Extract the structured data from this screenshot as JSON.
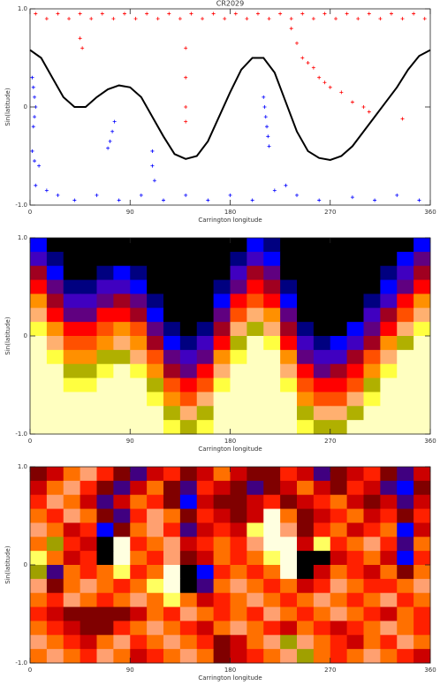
{
  "chart_data": [
    {
      "type": "scatter",
      "title": "CR2029",
      "xlabel": "Carrington longitude",
      "ylabel": "Sin(latitude)",
      "xlim": [
        0,
        360
      ],
      "ylim": [
        -1,
        1
      ],
      "xticks": [
        0,
        90,
        180,
        270,
        360
      ],
      "yticks": [
        {
          "value": -1,
          "label": "-1.0"
        },
        0,
        {
          "value": 1,
          "label": "1.0"
        }
      ],
      "series": [
        {
          "color": "#ff0000",
          "marker": "+",
          "x": [
            5,
            15,
            25,
            35,
            45,
            55,
            65,
            75,
            85,
            95,
            105,
            115,
            125,
            135,
            145,
            155,
            165,
            175,
            185,
            195,
            205,
            215,
            225,
            235,
            245,
            255,
            265,
            275,
            285,
            295,
            305,
            315,
            325,
            335,
            345,
            355,
            45,
            47,
            140,
            140,
            140,
            140,
            235,
            240,
            245,
            250,
            255,
            260,
            265,
            270,
            280,
            290,
            300,
            305,
            335
          ],
          "values": [
            0.95,
            0.9,
            0.95,
            0.9,
            0.95,
            0.9,
            0.95,
            0.9,
            0.95,
            0.9,
            0.95,
            0.9,
            0.95,
            0.9,
            0.95,
            0.9,
            0.95,
            0.9,
            0.95,
            0.9,
            0.95,
            0.9,
            0.95,
            0.9,
            0.95,
            0.9,
            0.95,
            0.9,
            0.95,
            0.9,
            0.95,
            0.9,
            0.95,
            0.9,
            0.95,
            0.9,
            0.7,
            0.6,
            0.6,
            0.3,
            0.0,
            -0.15,
            0.8,
            0.65,
            0.5,
            0.45,
            0.4,
            0.3,
            0.25,
            0.2,
            0.15,
            0.05,
            0.0,
            -0.05,
            -0.12
          ]
        },
        {
          "color": "#0000ff",
          "marker": "+",
          "x": [
            2,
            3,
            4,
            5,
            4,
            3,
            2,
            4,
            8,
            76,
            74,
            72,
            70,
            110,
            110,
            112,
            210,
            211,
            212,
            213,
            214,
            215,
            5,
            15,
            25,
            40,
            60,
            80,
            100,
            120,
            140,
            160,
            180,
            200,
            220,
            230,
            240,
            260,
            290,
            310,
            330,
            350
          ],
          "values": [
            0.3,
            0.2,
            0.1,
            0.0,
            -0.1,
            -0.2,
            -0.45,
            -0.55,
            -0.6,
            -0.15,
            -0.25,
            -0.35,
            -0.42,
            -0.45,
            -0.6,
            -0.75,
            0.1,
            0.0,
            -0.1,
            -0.2,
            -0.3,
            -0.4,
            -0.8,
            -0.85,
            -0.9,
            -0.95,
            -0.9,
            -0.95,
            -0.9,
            -0.95,
            -0.9,
            -0.95,
            -0.9,
            -0.95,
            -0.85,
            -0.8,
            -0.9,
            -0.95,
            -0.92,
            -0.95,
            -0.9,
            -0.95
          ]
        },
        {
          "color": "#000000",
          "style": "line",
          "x": [
            0,
            10,
            20,
            30,
            40,
            50,
            60,
            70,
            80,
            90,
            100,
            110,
            120,
            130,
            140,
            150,
            160,
            170,
            180,
            190,
            200,
            210,
            220,
            230,
            240,
            250,
            260,
            270,
            280,
            290,
            300,
            310,
            320,
            330,
            340,
            350,
            360
          ],
          "values": [
            0.58,
            0.5,
            0.3,
            0.1,
            0.0,
            0.0,
            0.1,
            0.18,
            0.22,
            0.2,
            0.1,
            -0.1,
            -0.3,
            -0.48,
            -0.53,
            -0.5,
            -0.35,
            -0.1,
            0.15,
            0.38,
            0.5,
            0.5,
            0.35,
            0.05,
            -0.25,
            -0.45,
            -0.52,
            -0.54,
            -0.5,
            -0.4,
            -0.25,
            -0.1,
            0.05,
            0.2,
            0.38,
            0.52,
            0.58
          ]
        }
      ]
    },
    {
      "type": "heatmap",
      "xlabel": "Carrington longitude",
      "ylabel": "Sin(latitude)",
      "xlim": [
        0,
        360
      ],
      "ylim": [
        -1,
        1
      ],
      "xticks": [
        0,
        90,
        180,
        270,
        360
      ],
      "yticks": [
        {
          "value": -1,
          "label": "-1.0"
        },
        0,
        {
          "value": 1,
          "label": "1.0"
        }
      ],
      "origin": "upper",
      "colors": [
        "#000000",
        "#000080",
        "#0000ff",
        "#4000c0",
        "#600080",
        "#a00020",
        "#ff0000",
        "#ff5000",
        "#ff9000",
        "#ffb070",
        "#b0b000",
        "#ffff40",
        "#ffffc0"
      ],
      "values": [
        [
          2,
          0,
          0,
          0,
          0,
          0,
          0,
          0,
          0,
          0,
          0,
          0,
          0,
          2,
          1,
          0,
          0,
          0,
          0,
          0,
          0,
          0,
          0,
          2
        ],
        [
          3,
          1,
          0,
          0,
          0,
          0,
          0,
          0,
          0,
          0,
          0,
          0,
          1,
          3,
          2,
          0,
          0,
          0,
          0,
          0,
          0,
          0,
          2,
          4
        ],
        [
          5,
          2,
          0,
          0,
          1,
          2,
          1,
          0,
          0,
          0,
          0,
          0,
          3,
          5,
          4,
          0,
          0,
          0,
          0,
          0,
          0,
          1,
          3,
          5
        ],
        [
          6,
          4,
          1,
          1,
          3,
          3,
          2,
          0,
          0,
          0,
          0,
          1,
          4,
          6,
          5,
          1,
          0,
          0,
          0,
          0,
          0,
          2,
          4,
          6
        ],
        [
          8,
          5,
          3,
          3,
          4,
          5,
          4,
          1,
          0,
          0,
          0,
          2,
          6,
          7,
          6,
          2,
          0,
          0,
          0,
          0,
          1,
          3,
          6,
          8
        ],
        [
          9,
          6,
          4,
          4,
          6,
          6,
          5,
          2,
          0,
          0,
          0,
          4,
          7,
          9,
          8,
          4,
          0,
          0,
          0,
          0,
          3,
          5,
          7,
          9
        ],
        [
          11,
          8,
          6,
          6,
          7,
          8,
          7,
          4,
          1,
          0,
          1,
          5,
          9,
          10,
          9,
          5,
          1,
          0,
          0,
          2,
          4,
          6,
          9,
          11
        ],
        [
          12,
          9,
          7,
          7,
          8,
          9,
          8,
          5,
          2,
          1,
          3,
          6,
          10,
          12,
          11,
          6,
          3,
          1,
          2,
          3,
          5,
          8,
          10,
          12
        ],
        [
          12,
          11,
          8,
          8,
          10,
          10,
          9,
          7,
          4,
          3,
          4,
          8,
          11,
          12,
          12,
          8,
          4,
          3,
          3,
          5,
          7,
          9,
          12,
          12
        ],
        [
          12,
          12,
          10,
          10,
          11,
          12,
          11,
          8,
          5,
          4,
          6,
          9,
          12,
          12,
          12,
          9,
          6,
          4,
          5,
          6,
          8,
          11,
          12,
          12
        ],
        [
          12,
          12,
          11,
          11,
          12,
          12,
          12,
          10,
          7,
          6,
          7,
          11,
          12,
          12,
          12,
          11,
          7,
          6,
          6,
          7,
          10,
          12,
          12,
          12
        ],
        [
          12,
          12,
          12,
          12,
          12,
          12,
          12,
          11,
          8,
          7,
          9,
          12,
          12,
          12,
          12,
          12,
          8,
          7,
          7,
          9,
          11,
          12,
          12,
          12
        ],
        [
          12,
          12,
          12,
          12,
          12,
          12,
          12,
          12,
          10,
          9,
          10,
          12,
          12,
          12,
          12,
          12,
          10,
          9,
          9,
          10,
          12,
          12,
          12,
          12
        ],
        [
          12,
          12,
          12,
          12,
          12,
          12,
          12,
          12,
          11,
          10,
          11,
          12,
          12,
          12,
          12,
          12,
          11,
          10,
          10,
          12,
          12,
          12,
          12,
          12
        ]
      ]
    },
    {
      "type": "heatmap",
      "xlabel": "Carrington longitude",
      "ylabel": "Sin(latitude)",
      "xlim": [
        0,
        360
      ],
      "ylim": [
        -1,
        1
      ],
      "xticks": [
        0,
        90,
        180,
        270,
        360
      ],
      "yticks": [
        {
          "value": -1,
          "label": "-1.0"
        },
        0,
        {
          "value": 1,
          "label": "1.0"
        }
      ],
      "origin": "upper",
      "colors": [
        "#000000",
        "#0000ff",
        "#400080",
        "#800000",
        "#cc0000",
        "#ff2000",
        "#ff7000",
        "#ffa070",
        "#a0a000",
        "#ffff60",
        "#ffffe0"
      ],
      "values": [
        [
          3,
          4,
          6,
          7,
          5,
          3,
          2,
          4,
          5,
          3,
          4,
          6,
          4,
          3,
          3,
          5,
          4,
          2,
          3,
          4,
          5,
          3,
          2,
          4
        ],
        [
          4,
          6,
          7,
          5,
          3,
          2,
          4,
          6,
          3,
          2,
          5,
          4,
          3,
          2,
          3,
          4,
          6,
          4,
          3,
          5,
          4,
          2,
          1,
          3
        ],
        [
          5,
          7,
          6,
          4,
          2,
          4,
          6,
          5,
          3,
          1,
          4,
          3,
          3,
          4,
          5,
          3,
          4,
          5,
          6,
          4,
          3,
          4,
          2,
          4
        ],
        [
          6,
          5,
          7,
          6,
          3,
          2,
          5,
          7,
          6,
          3,
          5,
          4,
          3,
          4,
          10,
          6,
          3,
          4,
          5,
          6,
          4,
          5,
          3,
          5
        ],
        [
          7,
          6,
          4,
          5,
          1,
          3,
          6,
          7,
          5,
          2,
          4,
          5,
          4,
          9,
          10,
          7,
          3,
          5,
          6,
          4,
          5,
          6,
          1,
          4
        ],
        [
          6,
          8,
          5,
          4,
          0,
          10,
          5,
          6,
          7,
          4,
          5,
          6,
          5,
          7,
          10,
          10,
          4,
          9,
          5,
          6,
          7,
          5,
          2,
          6
        ],
        [
          9,
          6,
          4,
          5,
          0,
          10,
          6,
          5,
          7,
          3,
          4,
          6,
          5,
          6,
          9,
          10,
          0,
          0,
          4,
          5,
          6,
          4,
          1,
          5
        ],
        [
          8,
          2,
          6,
          5,
          6,
          9,
          5,
          6,
          10,
          0,
          1,
          5,
          6,
          5,
          6,
          10,
          0,
          4,
          6,
          5,
          4,
          6,
          3,
          6
        ],
        [
          7,
          3,
          6,
          7,
          6,
          5,
          6,
          9,
          10,
          0,
          2,
          6,
          7,
          6,
          5,
          6,
          4,
          5,
          7,
          6,
          5,
          5,
          6,
          7
        ],
        [
          6,
          5,
          7,
          6,
          5,
          6,
          7,
          6,
          9,
          6,
          4,
          5,
          6,
          7,
          6,
          5,
          6,
          7,
          6,
          5,
          6,
          7,
          5,
          6
        ],
        [
          5,
          4,
          3,
          3,
          3,
          3,
          4,
          6,
          5,
          7,
          6,
          5,
          6,
          5,
          7,
          6,
          5,
          6,
          7,
          6,
          5,
          4,
          6,
          5
        ],
        [
          6,
          5,
          4,
          3,
          3,
          5,
          6,
          7,
          6,
          5,
          4,
          6,
          7,
          6,
          5,
          4,
          6,
          5,
          4,
          5,
          6,
          7,
          6,
          5
        ],
        [
          7,
          6,
          5,
          4,
          6,
          7,
          5,
          6,
          7,
          6,
          5,
          3,
          4,
          6,
          7,
          8,
          7,
          6,
          5,
          4,
          6,
          5,
          7,
          6
        ],
        [
          6,
          7,
          6,
          5,
          7,
          6,
          4,
          5,
          6,
          7,
          6,
          3,
          4,
          5,
          6,
          7,
          8,
          6,
          5,
          6,
          7,
          6,
          5,
          4
        ]
      ]
    }
  ]
}
